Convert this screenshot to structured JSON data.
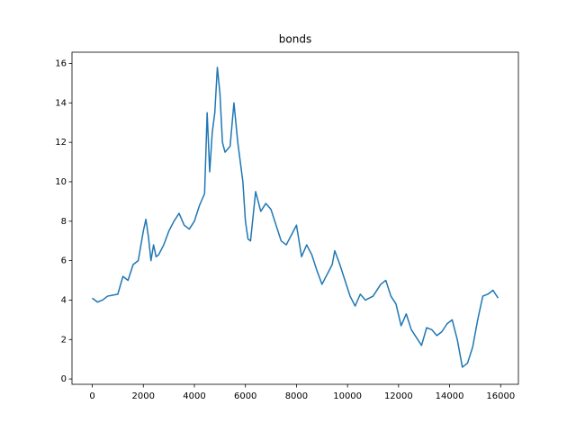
{
  "chart_data": {
    "type": "line",
    "title": "bonds",
    "x": [
      0,
      200,
      400,
      600,
      800,
      1000,
      1200,
      1400,
      1600,
      1800,
      2000,
      2100,
      2200,
      2300,
      2400,
      2500,
      2600,
      2800,
      3000,
      3200,
      3400,
      3600,
      3800,
      4000,
      4200,
      4400,
      4500,
      4600,
      4700,
      4800,
      4900,
      5000,
      5100,
      5200,
      5400,
      5550,
      5700,
      5900,
      6000,
      6100,
      6200,
      6400,
      6600,
      6800,
      7000,
      7200,
      7400,
      7600,
      7800,
      8000,
      8200,
      8400,
      8600,
      8800,
      9000,
      9200,
      9400,
      9500,
      9700,
      9900,
      10100,
      10300,
      10500,
      10700,
      11000,
      11300,
      11500,
      11700,
      11900,
      12100,
      12300,
      12500,
      12700,
      12900,
      13100,
      13300,
      13500,
      13700,
      13900,
      14100,
      14300,
      14500,
      14700,
      14900,
      15100,
      15300,
      15500,
      15700,
      15900
    ],
    "series": [
      {
        "name": "bonds",
        "color": "#1f77b4",
        "values": [
          4.1,
          3.9,
          4.0,
          4.2,
          4.25,
          4.3,
          5.2,
          5.0,
          5.8,
          6.0,
          7.5,
          8.1,
          7.2,
          6.0,
          6.8,
          6.2,
          6.3,
          6.8,
          7.5,
          8.0,
          8.4,
          7.8,
          7.6,
          8.0,
          8.8,
          9.4,
          13.5,
          10.5,
          12.5,
          13.5,
          15.8,
          14.5,
          12.0,
          11.5,
          11.8,
          14.0,
          12.0,
          10.0,
          8.0,
          7.1,
          7.0,
          9.5,
          8.5,
          8.9,
          8.6,
          7.8,
          7.0,
          6.8,
          7.3,
          7.8,
          6.2,
          6.8,
          6.3,
          5.5,
          4.8,
          5.3,
          5.8,
          6.5,
          5.8,
          5.0,
          4.2,
          3.7,
          4.3,
          4.0,
          4.2,
          4.8,
          5.0,
          4.2,
          3.8,
          2.7,
          3.3,
          2.5,
          2.1,
          1.7,
          2.6,
          2.5,
          2.2,
          2.4,
          2.8,
          3.0,
          2.0,
          0.6,
          0.8,
          1.6,
          3.0,
          4.2,
          4.3,
          4.5,
          4.1
        ]
      }
    ],
    "xlim": [
      -795,
      16695
    ],
    "xticks": [
      0,
      2000,
      4000,
      6000,
      8000,
      10000,
      12000,
      14000,
      16000
    ],
    "ylim": [
      -0.27,
      16.57
    ],
    "yticks": [
      0,
      2,
      4,
      6,
      8,
      10,
      12,
      14,
      16
    ]
  }
}
